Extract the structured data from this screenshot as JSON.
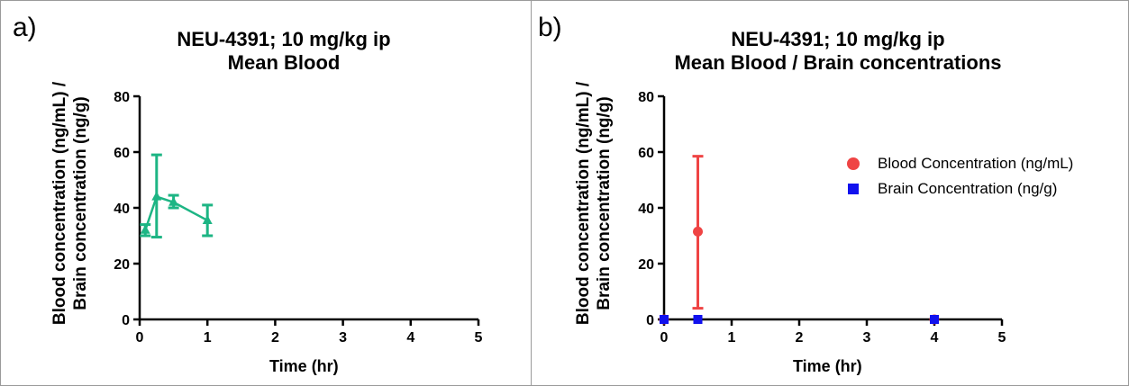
{
  "panel_a": {
    "label": "a)",
    "title_line1": "NEU-4391; 10 mg/kg ip",
    "title_line2": "Mean Blood",
    "ylabel_line1": "Blood concentration (ng/mL) /",
    "ylabel_line2": "Brain concentration (ng/g)",
    "xlabel": "Time (hr)"
  },
  "panel_b": {
    "label": "b)",
    "title_line1": "NEU-4391; 10 mg/kg ip",
    "title_line2": "Mean Blood / Brain concentrations",
    "ylabel_line1": "Blood concentration (ng/mL) /",
    "ylabel_line2": "Brain concentration (ng/g)",
    "xlabel": "Time (hr)",
    "legend": [
      {
        "label": "Blood Concentration (ng/mL)",
        "color": "#ef4444",
        "marker": "circle"
      },
      {
        "label": "Brain Concentration (ng/g)",
        "color": "#1111ee",
        "marker": "square"
      }
    ]
  },
  "chart_data": [
    {
      "type": "line",
      "title": "NEU-4391; 10 mg/kg ip\nMean Blood",
      "xlabel": "Time (hr)",
      "ylabel": "Blood concentration (ng/mL) / Brain concentration (ng/g)",
      "xlim": [
        0,
        5
      ],
      "ylim": [
        0,
        80
      ],
      "xticks": [
        0,
        1,
        2,
        3,
        4,
        5
      ],
      "yticks": [
        0,
        20,
        40,
        60,
        80
      ],
      "grid": false,
      "series": [
        {
          "color": "#1db584",
          "marker": "triangle",
          "x": [
            0.083,
            0.25,
            0.5,
            1
          ],
          "y": [
            32,
            44,
            42,
            35.5
          ],
          "err_low": [
            30,
            29.5,
            40,
            30
          ],
          "err_high": [
            34,
            59,
            44.5,
            41
          ]
        }
      ]
    },
    {
      "type": "scatter",
      "title": "NEU-4391; 10 mg/kg ip\nMean Blood / Brain concentrations",
      "xlabel": "Time (hr)",
      "ylabel": "Blood concentration (ng/mL) / Brain concentration (ng/g)",
      "xlim": [
        0,
        5
      ],
      "ylim": [
        0,
        80
      ],
      "xticks": [
        0,
        1,
        2,
        3,
        4,
        5
      ],
      "yticks": [
        0,
        20,
        40,
        60,
        80
      ],
      "grid": false,
      "legend_position": "right",
      "series": [
        {
          "name": "Blood Concentration (ng/mL)",
          "color": "#ef4444",
          "marker": "circle",
          "x": [
            0,
            0.5,
            4
          ],
          "y": [
            0,
            31.5,
            0
          ],
          "err_low": [
            0,
            4,
            0
          ],
          "err_high": [
            0,
            58.5,
            0
          ]
        },
        {
          "name": "Brain Concentration (ng/g)",
          "color": "#1111ee",
          "marker": "square",
          "x": [
            0,
            0.5,
            4
          ],
          "y": [
            0,
            0,
            0
          ]
        }
      ]
    }
  ]
}
